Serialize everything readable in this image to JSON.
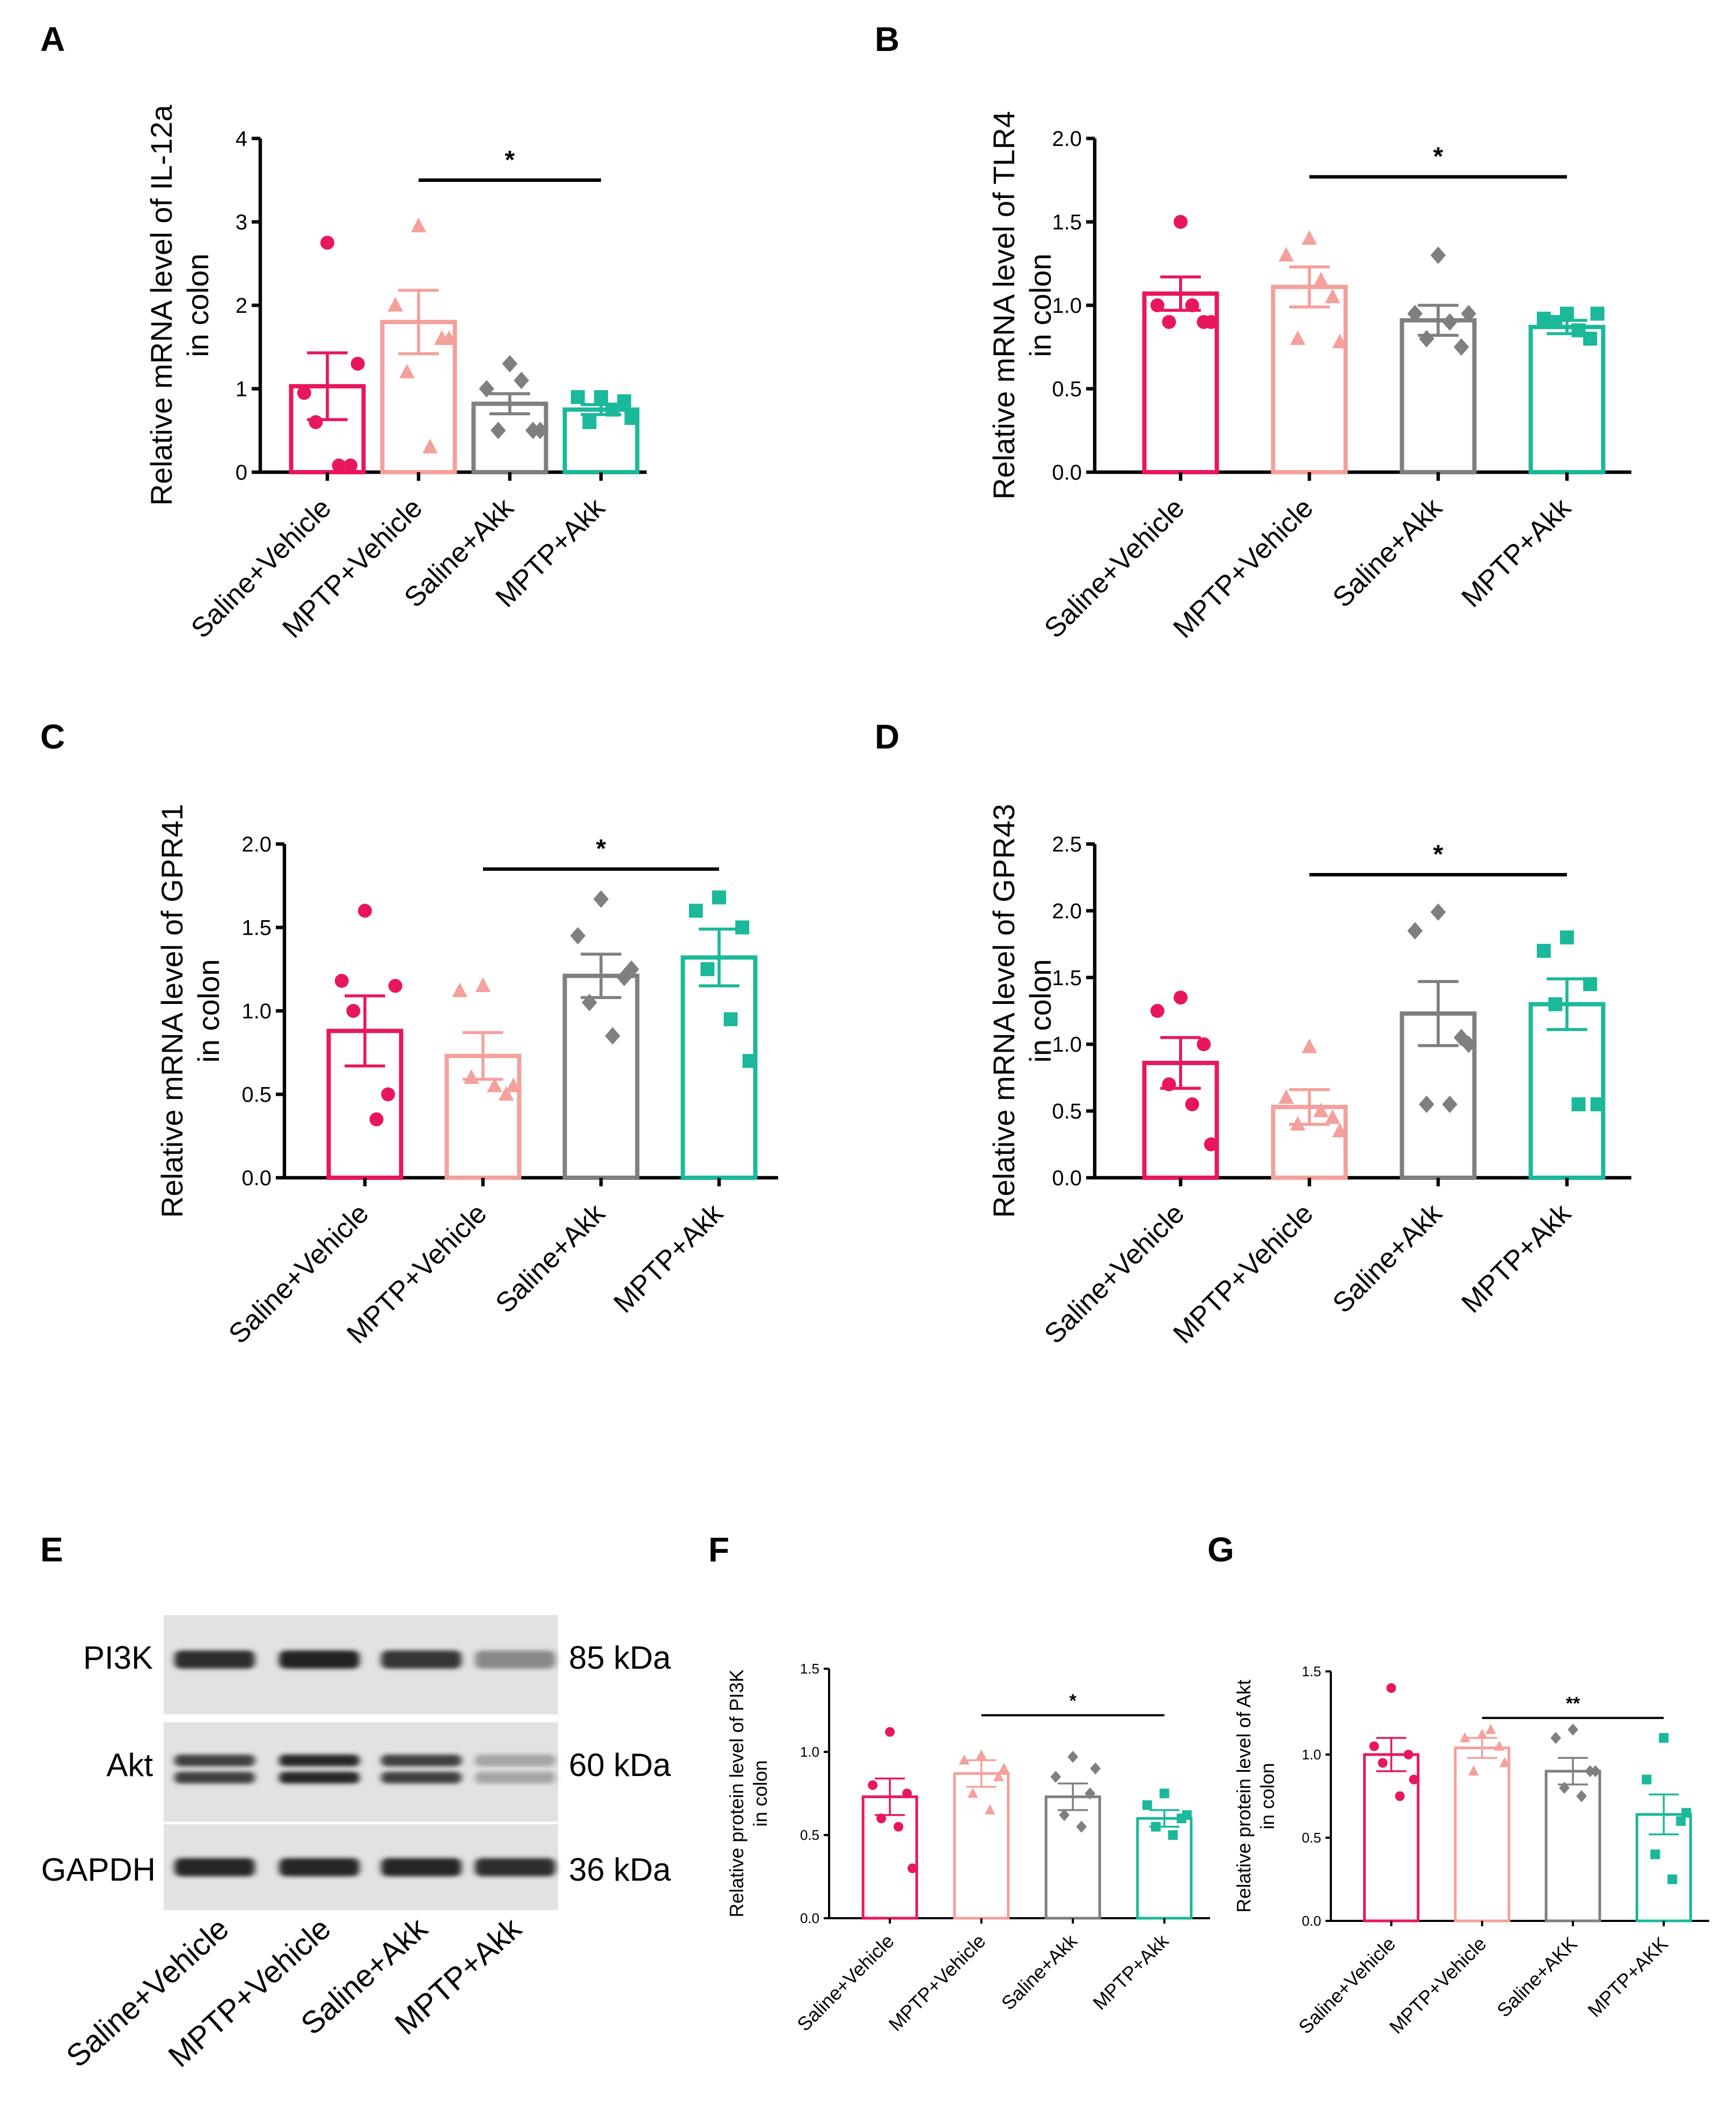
{
  "colors": {
    "saline_vehicle": "#E8175D",
    "mptp_vehicle": "#F4A09C",
    "saline_akk": "#7F7F7F",
    "mptp_akk": "#1BB89A"
  },
  "panels": {
    "A": "A",
    "B": "B",
    "C": "C",
    "D": "D",
    "E": "E",
    "F": "F",
    "G": "G"
  },
  "blot": {
    "bands": [
      {
        "name": "PI3K",
        "size": "85 kDa",
        "intensity": [
          0.85,
          0.92,
          0.82,
          0.35
        ]
      },
      {
        "name": "Akt",
        "size": "60 kDa",
        "intensity": [
          0.75,
          0.9,
          0.75,
          0.2
        ]
      },
      {
        "name": "GAPDH",
        "size": "36 kDa",
        "intensity": [
          0.9,
          0.9,
          0.9,
          0.85
        ]
      }
    ],
    "categories": [
      "Saline+Vehicle",
      "MPTP+Vehicle",
      "Saline+Akk",
      "MPTP+Akk"
    ]
  },
  "chart_data": [
    {
      "panel": "A",
      "type": "bar",
      "categories": [
        "Saline+Vehicle",
        "MPTP+Vehicle",
        "Saline+Akk",
        "MPTP+Akk"
      ],
      "values": [
        1.03,
        1.8,
        0.82,
        0.75
      ],
      "sem": [
        0.4,
        0.38,
        0.12,
        0.06
      ],
      "points": [
        [
          2.75,
          0.95,
          0.08,
          0.6,
          0.08,
          1.3
        ],
        [
          2.95,
          2.0,
          1.6,
          1.2,
          0.3,
          1.6
        ],
        [
          1.3,
          1.0,
          0.5,
          0.5,
          1.1,
          0.5
        ],
        [
          0.9,
          0.9,
          0.85,
          0.6,
          0.75,
          0.65
        ]
      ],
      "ylim": [
        0,
        4
      ],
      "yticks": [
        "0",
        "1",
        "2",
        "3",
        "4"
      ],
      "ylabel": [
        "Relative mRNA level of IL-12a",
        "in colon"
      ],
      "significance": {
        "from": 1,
        "to": 3,
        "label": "*",
        "y": 3.5
      }
    },
    {
      "panel": "B",
      "type": "bar",
      "categories": [
        "Saline+Vehicle",
        "MPTP+Vehicle",
        "Saline+Akk",
        "MPTP+Akk"
      ],
      "values": [
        1.07,
        1.11,
        0.91,
        0.87
      ],
      "sem": [
        0.1,
        0.12,
        0.09,
        0.04
      ],
      "points": [
        [
          1.5,
          1.0,
          0.9,
          0.9,
          1.0,
          0.9
        ],
        [
          1.4,
          1.3,
          1.05,
          0.8,
          1.15,
          0.78
        ],
        [
          1.3,
          0.95,
          0.75,
          0.8,
          0.9,
          0.95
        ],
        [
          0.95,
          0.92,
          0.8,
          0.9,
          0.85,
          0.95
        ]
      ],
      "ylim": [
        0,
        2
      ],
      "yticks": [
        "0.0",
        "0.5",
        "1.0",
        "1.5",
        "2.0"
      ],
      "ylabel": [
        "Relative mRNA level of TLR4",
        "in colon"
      ],
      "significance": {
        "from": 1,
        "to": 3,
        "label": "*",
        "y": 1.77
      }
    },
    {
      "panel": "C",
      "type": "bar",
      "categories": [
        "Saline+Vehicle",
        "MPTP+Vehicle",
        "Saline+Akk",
        "MPTP+Akk"
      ],
      "values": [
        0.88,
        0.73,
        1.21,
        1.32
      ],
      "sem": [
        0.21,
        0.14,
        0.13,
        0.17
      ],
      "points": [
        [
          1.6,
          1.18,
          0.5,
          1.0,
          0.35,
          1.15
        ],
        [
          1.15,
          1.12,
          0.5,
          0.6,
          0.55,
          0.55
        ],
        [
          1.67,
          1.45,
          1.2,
          1.05,
          0.85,
          1.25
        ],
        [
          1.68,
          1.6,
          1.5,
          1.25,
          0.95,
          0.7
        ]
      ],
      "ylim": [
        0,
        2
      ],
      "yticks": [
        "0.0",
        "0.5",
        "1.0",
        "1.5",
        "2.0"
      ],
      "ylabel": [
        "Relative mRNA level of GPR41",
        "in colon"
      ],
      "significance": {
        "from": 1,
        "to": 3,
        "label": "*",
        "y": 1.85
      }
    },
    {
      "panel": "D",
      "type": "bar",
      "categories": [
        "Saline+Vehicle",
        "MPTP+Vehicle",
        "Saline+Akk",
        "MPTP+Akk"
      ],
      "values": [
        0.86,
        0.53,
        1.23,
        1.3
      ],
      "sem": [
        0.19,
        0.13,
        0.24,
        0.19
      ],
      "points": [
        [
          1.35,
          1.25,
          1.0,
          0.7,
          0.55,
          0.25
        ],
        [
          0.98,
          0.6,
          0.45,
          0.4,
          0.5,
          0.35
        ],
        [
          1.99,
          1.85,
          1.05,
          0.55,
          0.55,
          1.0
        ],
        [
          1.8,
          1.7,
          1.45,
          1.3,
          0.55,
          0.55
        ]
      ],
      "ylim": [
        0,
        2.5
      ],
      "yticks": [
        "0.0",
        "0.5",
        "1.0",
        "1.5",
        "2.0",
        "2.5"
      ],
      "ylabel": [
        "Relative mRNA level of GPR43",
        "in colon"
      ],
      "significance": {
        "from": 1,
        "to": 3,
        "label": "*",
        "y": 2.27
      }
    },
    {
      "panel": "F",
      "type": "bar",
      "categories": [
        "Saline+Vehicle",
        "MPTP+Vehicle",
        "Saline+Akk",
        "MPTP+Akk"
      ],
      "values": [
        0.73,
        0.87,
        0.73,
        0.6
      ],
      "sem": [
        0.11,
        0.08,
        0.08,
        0.05
      ],
      "points": [
        [
          1.12,
          0.8,
          0.75,
          0.6,
          0.55,
          0.3
        ],
        [
          0.98,
          0.95,
          0.85,
          0.75,
          0.65,
          0.9
        ],
        [
          0.97,
          0.85,
          0.75,
          0.62,
          0.55,
          0.9
        ],
        [
          0.75,
          0.68,
          0.6,
          0.55,
          0.5,
          0.62
        ]
      ],
      "ylim": [
        0,
        1.5
      ],
      "yticks": [
        "0.0",
        "0.5",
        "1.0",
        "1.5"
      ],
      "ylabel": [
        "Relative protein level of PI3K",
        "in colon"
      ],
      "significance": {
        "from": 1,
        "to": 3,
        "label": "*",
        "y": 1.22
      }
    },
    {
      "panel": "G",
      "type": "bar",
      "categories": [
        "Saline+Vehicle",
        "MPTP+Vehicle",
        "Saline+AKK",
        "MPTP+AKK"
      ],
      "values": [
        1.0,
        1.04,
        0.9,
        0.64
      ],
      "sem": [
        0.1,
        0.06,
        0.08,
        0.12
      ],
      "points": [
        [
          1.4,
          1.05,
          1.0,
          0.95,
          0.75,
          0.85
        ],
        [
          1.12,
          1.1,
          1.05,
          0.9,
          1.15,
          0.95
        ],
        [
          1.15,
          1.1,
          0.9,
          0.8,
          0.75,
          0.9
        ],
        [
          1.1,
          0.85,
          0.6,
          0.4,
          0.25,
          0.65
        ]
      ],
      "ylim": [
        0,
        1.5
      ],
      "yticks": [
        "0.0",
        "0.5",
        "1.0",
        "1.5"
      ],
      "ylabel": [
        "Relative protein level of Akt",
        "in colon"
      ],
      "significance": {
        "from": 1,
        "to": 3,
        "label": "**",
        "y": 1.22
      }
    }
  ]
}
